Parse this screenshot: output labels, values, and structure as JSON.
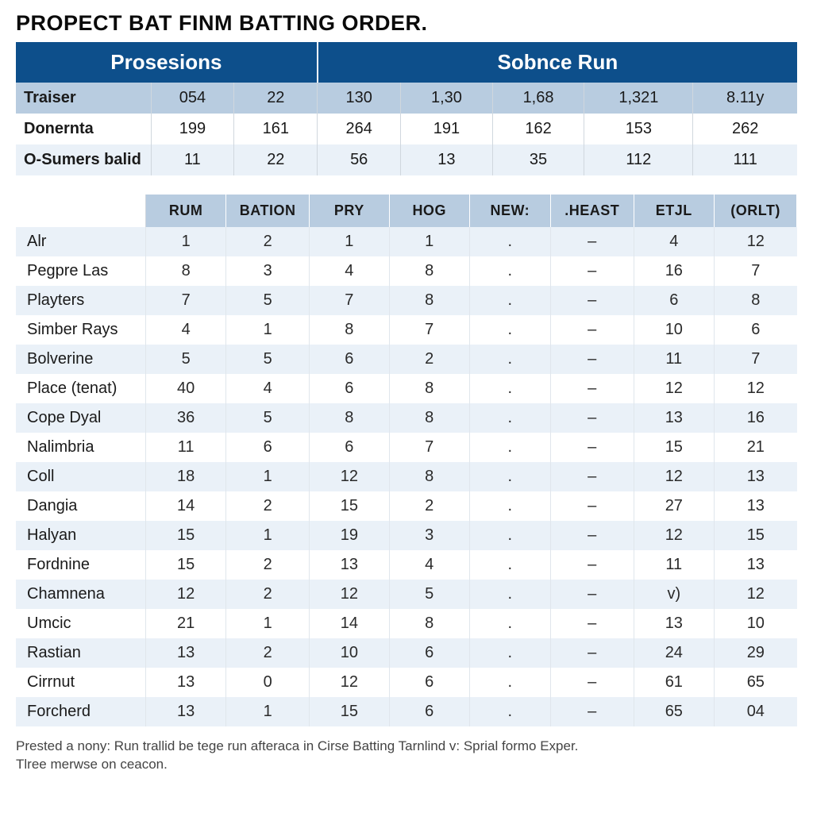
{
  "title": "PROPECT BAT FINM BATTING ORDER.",
  "colors": {
    "header_bg": "#0d4f8b",
    "header_text": "#ffffff",
    "subhead_bg": "#b8cce0",
    "stripe_light": "#eaf1f8",
    "stripe_white": "#ffffff",
    "text": "#1a1a1a",
    "border": "#d0d7de"
  },
  "top": {
    "group_headers": [
      "Prosesions",
      "Sobnce Run"
    ],
    "group_spans": [
      3,
      5
    ],
    "rows": [
      {
        "label": "Traiser",
        "cells": [
          "054",
          "22",
          "130",
          "1,30",
          "1,68",
          "1,321",
          "8.11y"
        ]
      },
      {
        "label": "Donernta",
        "cells": [
          "199",
          "161",
          "264",
          "191",
          "162",
          "153",
          "262"
        ]
      },
      {
        "label": "O-Sumers balid",
        "cells": [
          "11",
          "22",
          "56",
          "13",
          "35",
          "112",
          "111"
        ]
      }
    ]
  },
  "main": {
    "columns": [
      "",
      "RUM",
      "BATION",
      "PRY",
      "HOG",
      "NEW:",
      ".HEAST",
      "ETJL",
      "(ORLT)"
    ],
    "rows": [
      {
        "label": "Alr",
        "cells": [
          "1",
          "2",
          "1",
          "1",
          ".",
          "–",
          "4",
          "12"
        ]
      },
      {
        "label": "Pegpre Las",
        "cells": [
          "8",
          "3",
          "4",
          "8",
          ".",
          "–",
          "16",
          "7"
        ]
      },
      {
        "label": "Playters",
        "cells": [
          "7",
          "5",
          "7",
          "8",
          ".",
          "–",
          "6",
          "8"
        ]
      },
      {
        "label": "Simber Rays",
        "cells": [
          "4",
          "1",
          "8",
          "7",
          ".",
          "–",
          "10",
          "6"
        ]
      },
      {
        "label": "Bolverine",
        "cells": [
          "5",
          "5",
          "6",
          "2",
          ".",
          "–",
          "11",
          "7"
        ]
      },
      {
        "label": "Place (tenat)",
        "cells": [
          "40",
          "4",
          "6",
          "8",
          ".",
          "–",
          "12",
          "12"
        ]
      },
      {
        "label": "Cope Dyal",
        "cells": [
          "36",
          "5",
          "8",
          "8",
          ".",
          "–",
          "13",
          "16"
        ]
      },
      {
        "label": "Nalimbria",
        "cells": [
          "11",
          "6",
          "6",
          "7",
          ".",
          "–",
          "15",
          "21"
        ]
      },
      {
        "label": "Coll",
        "cells": [
          "18",
          "1",
          "12",
          "8",
          ".",
          "–",
          "12",
          "13"
        ]
      },
      {
        "label": "Dangia",
        "cells": [
          "14",
          "2",
          "15",
          "2",
          ".",
          "–",
          "27",
          "13"
        ]
      },
      {
        "label": "Halyan",
        "cells": [
          "15",
          "1",
          "19",
          "3",
          ".",
          "–",
          "12",
          "15"
        ]
      },
      {
        "label": "Fordnine",
        "cells": [
          "15",
          "2",
          "13",
          "4",
          ".",
          "–",
          "11",
          "13"
        ]
      },
      {
        "label": "Chamnena",
        "cells": [
          "12",
          "2",
          "12",
          "5",
          ".",
          "–",
          "v)",
          "12"
        ]
      },
      {
        "label": "Umcic",
        "cells": [
          "21",
          "1",
          "14",
          "8",
          ".",
          "–",
          "13",
          "10"
        ]
      },
      {
        "label": "Rastian",
        "cells": [
          "13",
          "2",
          "10",
          "6",
          ".",
          "–",
          "24",
          "29"
        ]
      },
      {
        "label": "Cirrnut",
        "cells": [
          "13",
          "0",
          "12",
          "6",
          ".",
          "–",
          "61",
          "65"
        ]
      },
      {
        "label": "Forcherd",
        "cells": [
          "13",
          "1",
          "15",
          "6",
          ".",
          "–",
          "65",
          "04"
        ]
      }
    ]
  },
  "footnote": {
    "line1": "Prested a nony: Run trallid be tege run afteraca in Cirse Batting Tarnlind v: Sprial formo Exper.",
    "line2": "Tlree merwse on ceacon."
  }
}
